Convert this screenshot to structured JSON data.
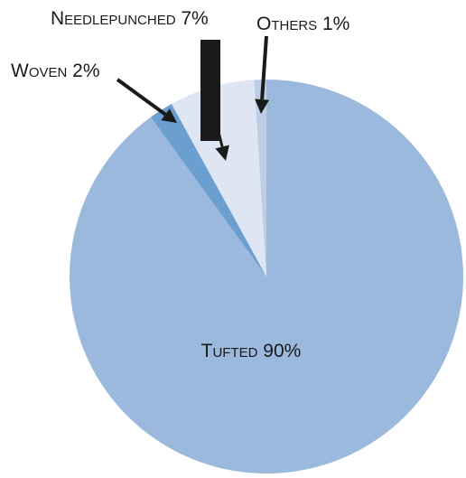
{
  "chart_data": {
    "type": "pie",
    "title": "",
    "slices": [
      {
        "label": "Tufted 90%",
        "value": 90,
        "color": "#9bb9dc"
      },
      {
        "label": "Woven 2%",
        "value": 2,
        "color": "#6a9fd0"
      },
      {
        "label": "Needlepunched 7%",
        "value": 7,
        "color": "#dde6f2"
      },
      {
        "label": "Others 1%",
        "value": 1,
        "color": "#bccde4"
      }
    ],
    "colors": {
      "arrow": "#1a1a1a",
      "text": "#1a1a1a"
    }
  }
}
